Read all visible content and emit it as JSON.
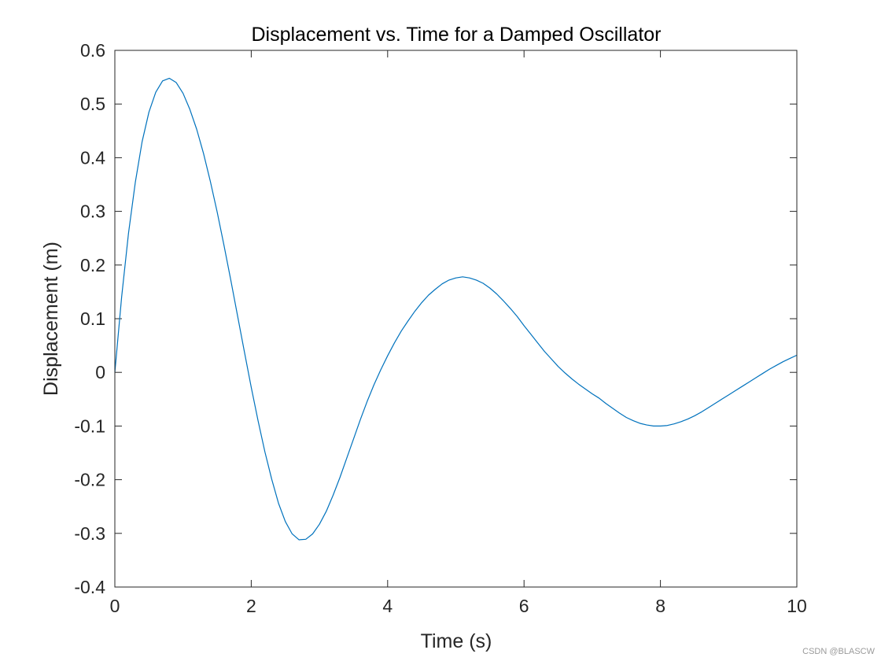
{
  "chart_data": {
    "type": "line",
    "title": "Displacement vs. Time for a Damped Oscillator",
    "xlabel": "Time (s)",
    "ylabel": "Displacement (m)",
    "xlim": [
      0,
      10
    ],
    "ylim": [
      -0.4,
      0.6
    ],
    "xticks": [
      0,
      2,
      4,
      6,
      8,
      10
    ],
    "xtick_labels": [
      "0",
      "2",
      "4",
      "6",
      "8",
      "10"
    ],
    "yticks": [
      -0.4,
      -0.3,
      -0.2,
      -0.1,
      0,
      0.1,
      0.2,
      0.3,
      0.4,
      0.5,
      0.6
    ],
    "ytick_labels": [
      "-0.4",
      "-0.3",
      "-0.2",
      "-0.1",
      "0",
      "0.1",
      "0.2",
      "0.3",
      "0.4",
      "0.5",
      "0.6"
    ],
    "grid": false,
    "box": true,
    "series": [
      {
        "color": "#0072BD",
        "x": [
          0,
          0.1,
          0.2,
          0.3,
          0.4,
          0.5,
          0.6,
          0.7,
          0.8,
          0.9,
          1.0,
          1.1,
          1.2,
          1.3,
          1.4,
          1.5,
          1.6,
          1.7,
          1.8,
          1.9,
          2.0,
          2.1,
          2.2,
          2.3,
          2.4,
          2.5,
          2.6,
          2.7,
          2.8,
          2.9,
          3.0,
          3.1,
          3.2,
          3.3,
          3.4,
          3.5,
          3.6,
          3.7,
          3.8,
          3.9,
          4.0,
          4.1,
          4.2,
          4.3,
          4.4,
          4.5,
          4.6,
          4.7,
          4.8,
          4.9,
          5.0,
          5.1,
          5.2,
          5.3,
          5.4,
          5.5,
          5.6,
          5.7,
          5.8,
          5.9,
          6.0,
          6.1,
          6.2,
          6.3,
          6.4,
          6.5,
          6.6,
          6.7,
          6.8,
          6.9,
          7.0,
          7.1,
          7.2,
          7.3,
          7.4,
          7.5,
          7.6,
          7.7,
          7.8,
          7.9,
          8.0,
          8.1,
          8.2,
          8.3,
          8.4,
          8.5,
          8.6,
          8.7,
          8.8,
          8.9,
          9.0,
          9.1,
          9.2,
          9.3,
          9.4,
          9.5,
          9.6,
          9.7,
          9.8,
          9.9,
          10.0
        ],
        "y": [
          0.0,
          0.141,
          0.259,
          0.354,
          0.43,
          0.485,
          0.522,
          0.543,
          0.548,
          0.54,
          0.52,
          0.49,
          0.453,
          0.408,
          0.356,
          0.299,
          0.237,
          0.172,
          0.105,
          0.038,
          -0.028,
          -0.09,
          -0.148,
          -0.199,
          -0.244,
          -0.278,
          -0.301,
          -0.312,
          -0.311,
          -0.301,
          -0.283,
          -0.259,
          -0.229,
          -0.196,
          -0.16,
          -0.124,
          -0.088,
          -0.054,
          -0.023,
          0.005,
          0.031,
          0.055,
          0.077,
          0.096,
          0.114,
          0.13,
          0.144,
          0.155,
          0.165,
          0.172,
          0.176,
          0.178,
          0.176,
          0.172,
          0.166,
          0.157,
          0.146,
          0.133,
          0.119,
          0.104,
          0.087,
          0.071,
          0.055,
          0.039,
          0.025,
          0.011,
          -0.001,
          -0.012,
          -0.022,
          -0.031,
          -0.04,
          -0.048,
          -0.058,
          -0.067,
          -0.076,
          -0.084,
          -0.09,
          -0.095,
          -0.098,
          -0.1,
          -0.1,
          -0.099,
          -0.096,
          -0.092,
          -0.087,
          -0.081,
          -0.074,
          -0.066,
          -0.058,
          -0.05,
          -0.042,
          -0.034,
          -0.026,
          -0.018,
          -0.01,
          -0.002,
          0.006,
          0.013,
          0.02,
          0.026,
          0.032
        ]
      }
    ]
  },
  "watermark": "CSDN @BLASCW"
}
